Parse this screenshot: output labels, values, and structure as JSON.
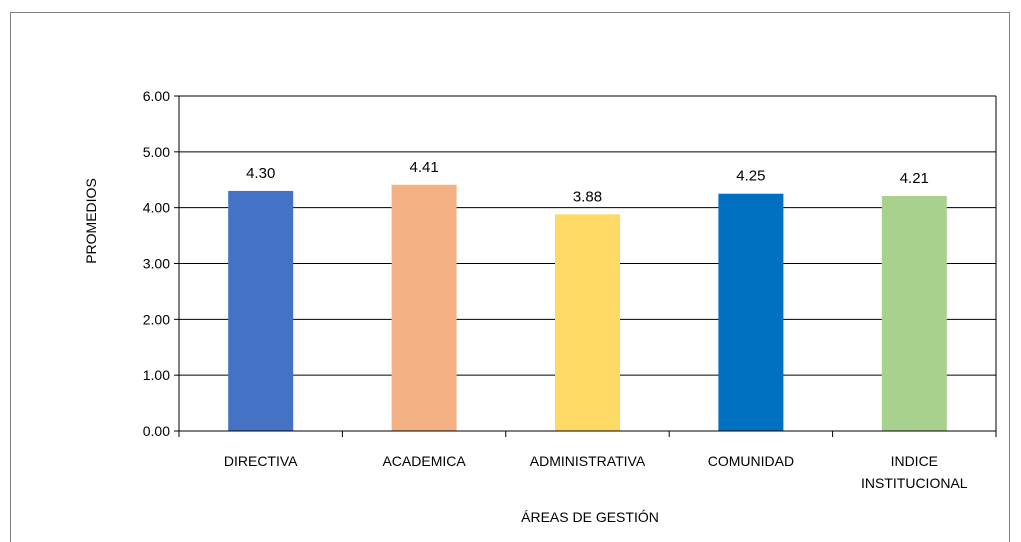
{
  "chart_data": {
    "type": "bar",
    "categories": [
      "DIRECTIVA",
      "ACADEMICA",
      "ADMINISTRATIVA",
      "COMUNIDAD",
      "INDICE INSTITUCIONAL"
    ],
    "category_lines": [
      [
        "DIRECTIVA"
      ],
      [
        "ACADEMICA"
      ],
      [
        "ADMINISTRATIVA"
      ],
      [
        "COMUNIDAD"
      ],
      [
        "INDICE",
        "INSTITUCIONAL"
      ]
    ],
    "values": [
      4.3,
      4.41,
      3.88,
      4.25,
      4.21
    ],
    "data_labels": [
      "4.30",
      "4.41",
      "3.88",
      "4.25",
      "4.21"
    ],
    "colors": [
      "#4472c4",
      "#f4b183",
      "#ffd966",
      "#0070c0",
      "#a9d18e"
    ],
    "xlabel": "ÁREAS DE GESTIÓN",
    "ylabel": "PROMEDIOS",
    "ylim": [
      0,
      6
    ],
    "yticks": [
      "0.00",
      "1.00",
      "2.00",
      "3.00",
      "4.00",
      "5.00",
      "6.00"
    ],
    "grid": true,
    "legend": "none"
  }
}
